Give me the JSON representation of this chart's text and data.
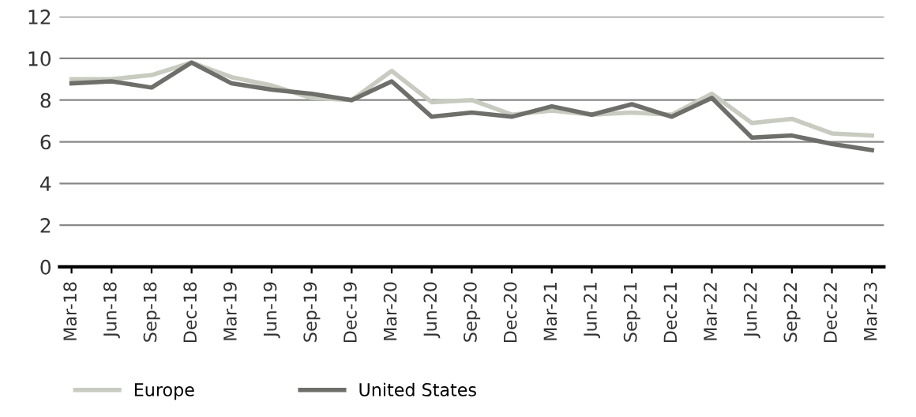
{
  "chart_data": {
    "type": "line",
    "categories": [
      "Mar-18",
      "Jun-18",
      "Sep-18",
      "Dec-18",
      "Mar-19",
      "Jun-19",
      "Sep-19",
      "Dec-19",
      "Mar-20",
      "Jun-20",
      "Sep-20",
      "Dec-20",
      "Mar-21",
      "Jun-21",
      "Sep-21",
      "Dec-21",
      "Mar-22",
      "Jun-22",
      "Sep-22",
      "Dec-22",
      "Mar-23"
    ],
    "series": [
      {
        "name": "Europe",
        "color": "#c8cbc0",
        "values": [
          9.0,
          9.0,
          9.2,
          9.8,
          9.1,
          8.7,
          8.1,
          8.0,
          9.4,
          7.9,
          8.0,
          7.3,
          7.5,
          7.3,
          7.4,
          7.3,
          8.3,
          6.9,
          7.1,
          6.4,
          6.3
        ]
      },
      {
        "name": "United States",
        "color": "#6e6e6a",
        "values": [
          8.8,
          8.9,
          8.6,
          9.8,
          8.8,
          8.5,
          8.3,
          8.0,
          8.9,
          7.2,
          7.4,
          7.2,
          7.7,
          7.3,
          7.8,
          7.2,
          8.1,
          6.2,
          6.3,
          5.9,
          5.6
        ]
      }
    ],
    "ylim": [
      0,
      12
    ],
    "yticks": [
      0,
      2,
      4,
      6,
      8,
      10,
      12
    ],
    "grid": "y",
    "legend": "bottom left",
    "marker": "none",
    "line_style": "solid"
  }
}
